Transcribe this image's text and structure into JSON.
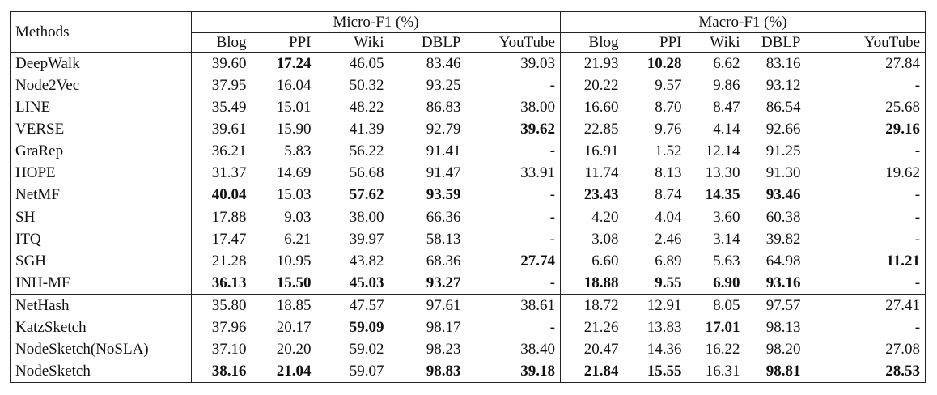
{
  "header": {
    "methods": "Methods",
    "groups": [
      {
        "label": "Micro-F1 (%)",
        "columns": [
          "Blog",
          "PPI",
          "Wiki",
          "DBLP",
          "YouTube"
        ]
      },
      {
        "label": "Macro-F1 (%)",
        "columns": [
          "Blog",
          "PPI",
          "Wiki",
          "DBLP",
          "YouTube"
        ]
      }
    ]
  },
  "sections": [
    {
      "rows": [
        {
          "method": "DeepWalk",
          "values": [
            "39.60",
            "17.24",
            "46.05",
            "83.46",
            "39.03",
            "21.93",
            "10.28",
            "6.62",
            "83.16",
            "27.84"
          ],
          "bold": [
            1,
            6
          ]
        },
        {
          "method": "Node2Vec",
          "values": [
            "37.95",
            "16.04",
            "50.32",
            "93.25",
            "-",
            "20.22",
            "9.57",
            "9.86",
            "93.12",
            "-"
          ],
          "bold": []
        },
        {
          "method": "LINE",
          "values": [
            "35.49",
            "15.01",
            "48.22",
            "86.83",
            "38.00",
            "16.60",
            "8.70",
            "8.47",
            "86.54",
            "25.68"
          ],
          "bold": []
        },
        {
          "method": "VERSE",
          "values": [
            "39.61",
            "15.90",
            "41.39",
            "92.79",
            "39.62",
            "22.85",
            "9.76",
            "4.14",
            "92.66",
            "29.16"
          ],
          "bold": [
            4,
            9
          ]
        },
        {
          "method": "GraRep",
          "values": [
            "36.21",
            "5.83",
            "56.22",
            "91.41",
            "-",
            "16.91",
            "1.52",
            "12.14",
            "91.25",
            "-"
          ],
          "bold": []
        },
        {
          "method": "HOPE",
          "values": [
            "31.37",
            "14.69",
            "56.68",
            "91.47",
            "33.91",
            "11.74",
            "8.13",
            "13.30",
            "91.30",
            "19.62"
          ],
          "bold": []
        },
        {
          "method": "NetMF",
          "values": [
            "40.04",
            "15.03",
            "57.62",
            "93.59",
            "-",
            "23.43",
            "8.74",
            "14.35",
            "93.46",
            "-"
          ],
          "bold": [
            0,
            2,
            3,
            5,
            7,
            8
          ]
        }
      ]
    },
    {
      "rows": [
        {
          "method": "SH",
          "values": [
            "17.88",
            "9.03",
            "38.00",
            "66.36",
            "-",
            "4.20",
            "4.04",
            "3.60",
            "60.38",
            "-"
          ],
          "bold": []
        },
        {
          "method": "ITQ",
          "values": [
            "17.47",
            "6.21",
            "39.97",
            "58.13",
            "-",
            "3.08",
            "2.46",
            "3.14",
            "39.82",
            "-"
          ],
          "bold": []
        },
        {
          "method": "SGH",
          "values": [
            "21.28",
            "10.95",
            "43.82",
            "68.36",
            "27.74",
            "6.60",
            "6.89",
            "5.63",
            "64.98",
            "11.21"
          ],
          "bold": [
            4,
            9
          ]
        },
        {
          "method": "INH-MF",
          "values": [
            "36.13",
            "15.50",
            "45.03",
            "93.27",
            "-",
            "18.88",
            "9.55",
            "6.90",
            "93.16",
            "-"
          ],
          "bold": [
            0,
            1,
            2,
            3,
            5,
            6,
            7,
            8
          ]
        }
      ]
    },
    {
      "rows": [
        {
          "method": "NetHash",
          "values": [
            "35.80",
            "18.85",
            "47.57",
            "97.61",
            "38.61",
            "18.72",
            "12.91",
            "8.05",
            "97.57",
            "27.41"
          ],
          "bold": []
        },
        {
          "method": "KatzSketch",
          "values": [
            "37.96",
            "20.17",
            "59.09",
            "98.17",
            "-",
            "21.26",
            "13.83",
            "17.01",
            "98.13",
            "-"
          ],
          "bold": [
            2,
            7
          ]
        },
        {
          "method": "NodeSketch(NoSLA)",
          "values": [
            "37.10",
            "20.20",
            "59.02",
            "98.23",
            "38.40",
            "20.47",
            "14.36",
            "16.22",
            "98.20",
            "27.08"
          ],
          "bold": []
        },
        {
          "method": "NodeSketch",
          "values": [
            "38.16",
            "21.04",
            "59.07",
            "98.83",
            "39.18",
            "21.84",
            "15.55",
            "16.31",
            "98.81",
            "28.53"
          ],
          "bold": [
            0,
            1,
            3,
            4,
            5,
            6,
            8,
            9
          ]
        }
      ]
    }
  ]
}
